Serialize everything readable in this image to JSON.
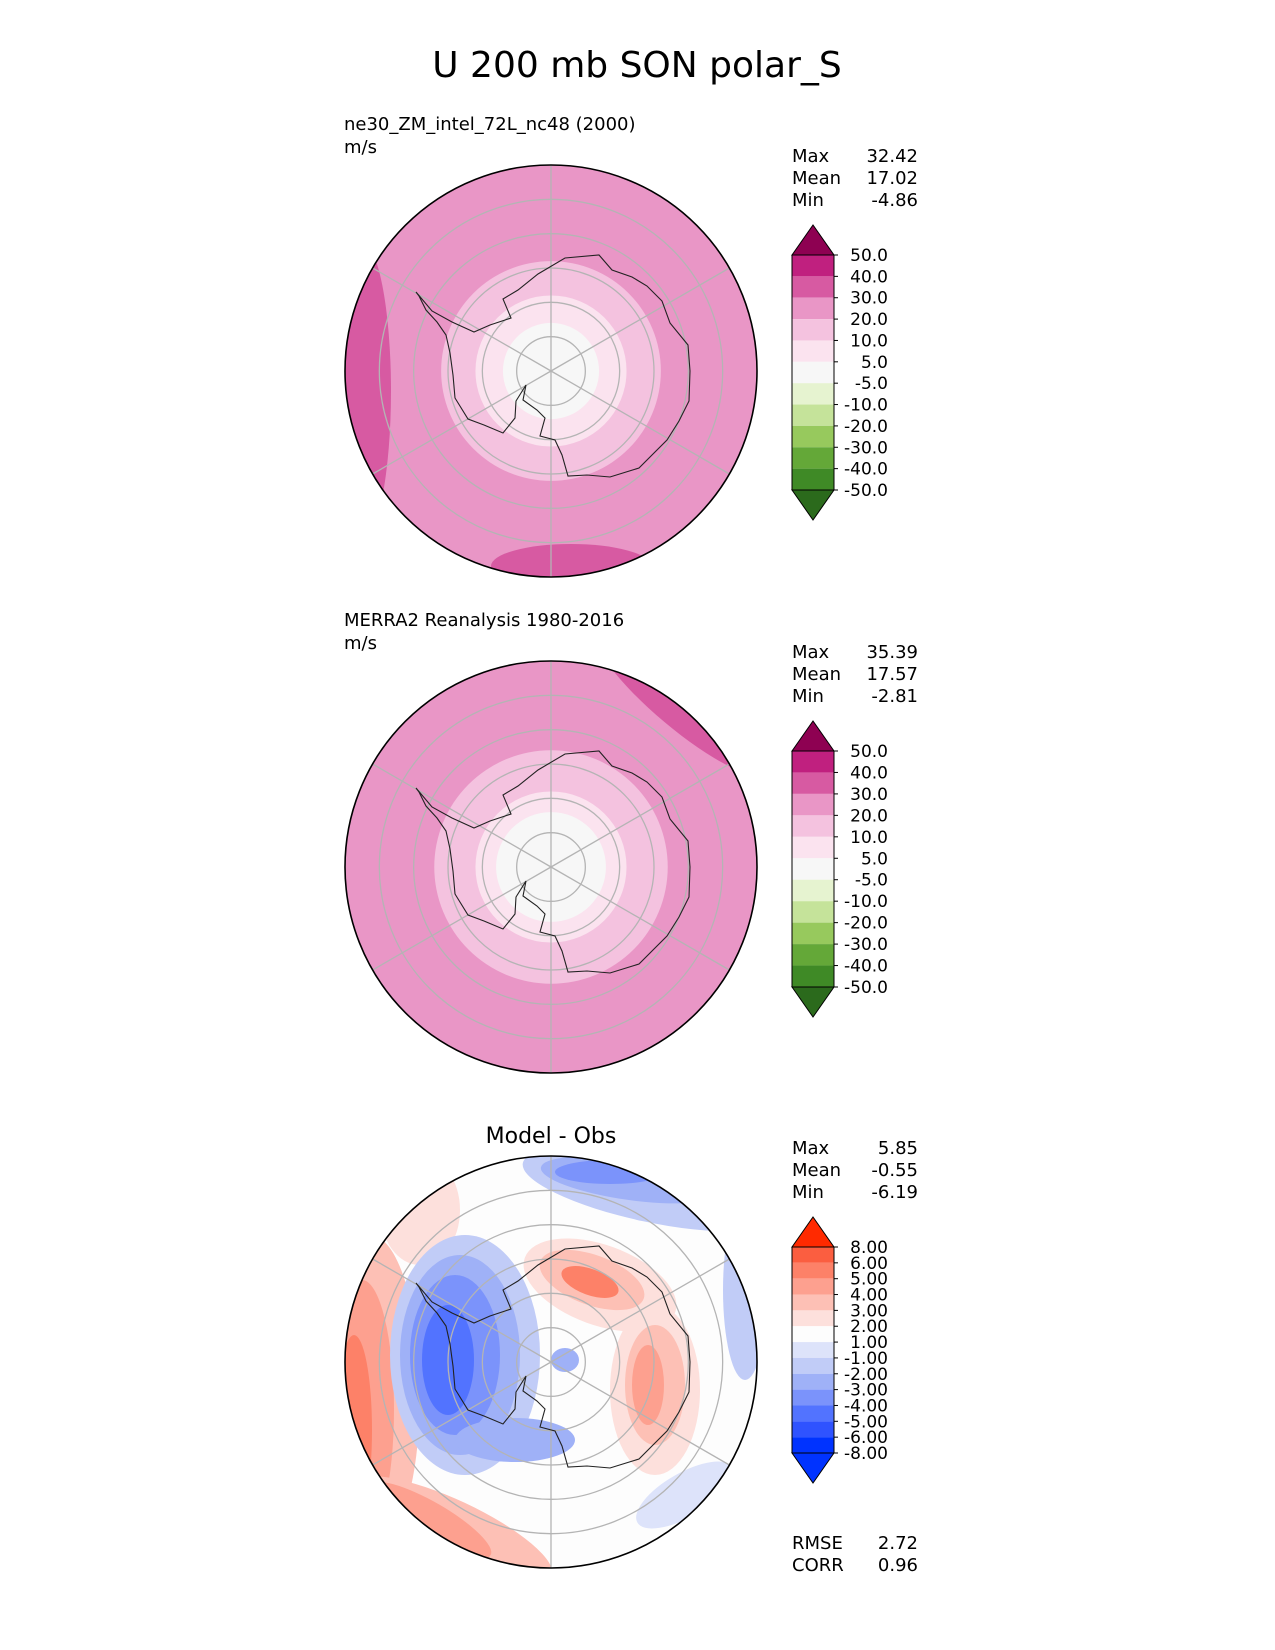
{
  "title": "U 200 mb SON polar_S",
  "stats_labels": {
    "max": "Max",
    "mean": "Mean",
    "min": "Min",
    "rmse": "RMSE",
    "corr": "CORR"
  },
  "colors": {
    "abs_scale": [
      "#2b6a1c",
      "#3f8a26",
      "#64a838",
      "#97c95d",
      "#c5e39a",
      "#e6f3d0",
      "#f7f7f7",
      "#fbe3ef",
      "#f4c2df",
      "#e996c6",
      "#d75aa2",
      "#c0207f",
      "#8e0152"
    ],
    "diff_scale": [
      "#0033ff",
      "#2f53ff",
      "#5273ff",
      "#7b93fb",
      "#9fb1f7",
      "#c1ccf7",
      "#dde3fa",
      "#fdfdfd",
      "#fde0dc",
      "#fdc0b5",
      "#fda08f",
      "#fd8168",
      "#fb5e40",
      "#ff2a00"
    ],
    "gridline": "#b4b4b4",
    "coastline": "#222222"
  },
  "chart_data": [
    {
      "type": "heatmap",
      "projection": "polar_S",
      "title_left": "ne30_ZM_intel_72L_nc48 (2000)",
      "units": "m/s",
      "stats": {
        "max": "32.42",
        "mean": "17.02",
        "min": "-4.86"
      },
      "colorbar_labels": [
        "50.0",
        "40.0",
        "30.0",
        "20.0",
        "10.0",
        "5.0",
        "-5.0",
        "-10.0",
        "-20.0",
        "-30.0",
        "-40.0",
        "-50.0"
      ],
      "levels": [
        -50,
        -40,
        -30,
        -20,
        -10,
        -5,
        5,
        10,
        20,
        30,
        40,
        50
      ],
      "field_bands": [
        {
          "from_colat": 0,
          "to_colat": 14,
          "value": 2
        },
        {
          "from_colat": 14,
          "to_colat": 22,
          "value": 8
        },
        {
          "from_colat": 22,
          "to_colat": 32,
          "value": 15
        },
        {
          "from_colat": 32,
          "to_colat": 60,
          "value": 25
        }
      ]
    },
    {
      "type": "heatmap",
      "projection": "polar_S",
      "title_left": "MERRA2 Reanalysis 1980-2016",
      "units": "m/s",
      "stats": {
        "max": "35.39",
        "mean": "17.57",
        "min": "-2.81"
      },
      "colorbar_labels": [
        "50.0",
        "40.0",
        "30.0",
        "20.0",
        "10.0",
        "5.0",
        "-5.0",
        "-10.0",
        "-20.0",
        "-30.0",
        "-40.0",
        "-50.0"
      ],
      "levels": [
        -50,
        -40,
        -30,
        -20,
        -10,
        -5,
        5,
        10,
        20,
        30,
        40,
        50
      ],
      "field_bands": [
        {
          "from_colat": 0,
          "to_colat": 16,
          "value": 1
        },
        {
          "from_colat": 16,
          "to_colat": 22,
          "value": 8
        },
        {
          "from_colat": 22,
          "to_colat": 34,
          "value": 15
        },
        {
          "from_colat": 34,
          "to_colat": 60,
          "value": 25
        }
      ]
    },
    {
      "type": "heatmap",
      "projection": "polar_S",
      "title_center": "Model - Obs",
      "stats": {
        "max": "5.85",
        "mean": "-0.55",
        "min": "-6.19"
      },
      "metrics": {
        "rmse": "2.72",
        "corr": "0.96"
      },
      "colorbar_labels": [
        "8.00",
        "6.00",
        "5.00",
        "4.00",
        "3.00",
        "2.00",
        "1.00",
        "-1.00",
        "-2.00",
        "-3.00",
        "-4.00",
        "-5.00",
        "-6.00",
        "-8.00"
      ],
      "levels": [
        -8,
        -6,
        -5,
        -4,
        -3,
        -2,
        -1,
        1,
        2,
        3,
        4,
        5,
        6,
        8
      ]
    }
  ]
}
